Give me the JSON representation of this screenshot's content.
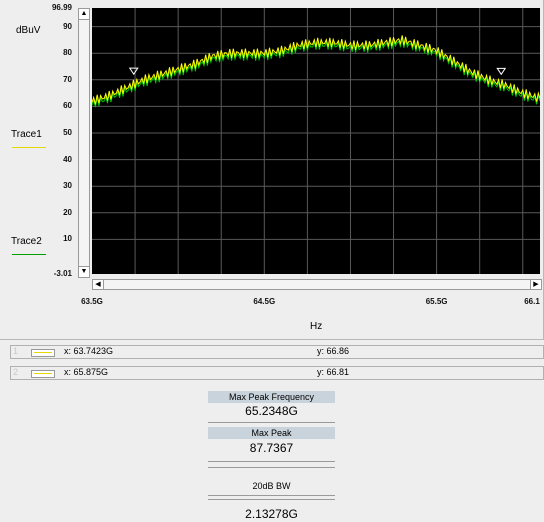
{
  "chart_data": {
    "type": "line",
    "y_unit": "dBuV",
    "x_unit": "Hz",
    "ylim": [
      -3.01,
      96.99
    ],
    "y_ticks": [
      "96.99",
      "90",
      "80",
      "70",
      "60",
      "50",
      "40",
      "30",
      "20",
      "10",
      "-3.01"
    ],
    "y_tick_values": [
      96.99,
      90,
      80,
      70,
      60,
      50,
      40,
      30,
      20,
      10,
      -3.01
    ],
    "x_ticks": [
      "63.5G",
      "64.5G",
      "65.5G",
      "66.1"
    ],
    "x_tick_values_ghz": [
      63.5,
      64.5,
      65.5,
      66.1
    ],
    "xlim_ghz": [
      63.5,
      66.1
    ],
    "grid": true,
    "series": [
      {
        "name": "Trace1",
        "color": "#ffff00",
        "x_ghz": [
          63.5,
          63.6,
          63.7,
          63.8,
          63.9,
          64.0,
          64.1,
          64.2,
          64.3,
          64.4,
          64.5,
          64.6,
          64.7,
          64.8,
          64.9,
          65.0,
          65.1,
          65.2,
          65.3,
          65.4,
          65.5,
          65.6,
          65.7,
          65.8,
          65.9,
          66.0,
          66.1
        ],
        "y": [
          62,
          64,
          67,
          70,
          72,
          74,
          76,
          79,
          80,
          80,
          80,
          81,
          83,
          84,
          84,
          83,
          83,
          84,
          85,
          83,
          81,
          77,
          73,
          70,
          68,
          65,
          63
        ]
      },
      {
        "name": "Trace2",
        "color": "#00c800",
        "x_ghz": [
          63.5,
          63.6,
          63.7,
          63.8,
          63.9,
          64.0,
          64.1,
          64.2,
          64.3,
          64.4,
          64.5,
          64.6,
          64.7,
          64.8,
          64.9,
          65.0,
          65.1,
          65.2,
          65.3,
          65.4,
          65.5,
          65.6,
          65.7,
          65.8,
          65.9,
          66.0,
          66.1
        ],
        "y": [
          61,
          63,
          66,
          69,
          71,
          73,
          75,
          78,
          79,
          79,
          79,
          80,
          82,
          83,
          83,
          82,
          82,
          83,
          84,
          82,
          80,
          76,
          72,
          69,
          67,
          64,
          62
        ]
      }
    ],
    "markers": [
      {
        "index": "1",
        "x_label": "x: 63.7423G",
        "y_label": "y: 66.86",
        "x_ghz": 63.7423,
        "y": 66.86
      },
      {
        "index": "2",
        "x_label": "x: 65.875G",
        "y_label": "y: 66.81",
        "x_ghz": 65.875,
        "y": 66.81
      }
    ]
  },
  "legend": {
    "trace1": "Trace1",
    "trace1_color": "#e5d800",
    "trace2": "Trace2",
    "trace2_color": "#00a000"
  },
  "results": {
    "max_peak_frequency_label": "Max Peak Frequency",
    "max_peak_frequency_value": "65.2348G",
    "max_peak_label": "Max Peak",
    "max_peak_value": "87.7367",
    "bw_label": "20dB BW",
    "bw_value": "2.13278G"
  },
  "icons": {
    "scroll_up": "▲",
    "scroll_down": "▼",
    "scroll_left": "◀",
    "scroll_right": "▶"
  }
}
